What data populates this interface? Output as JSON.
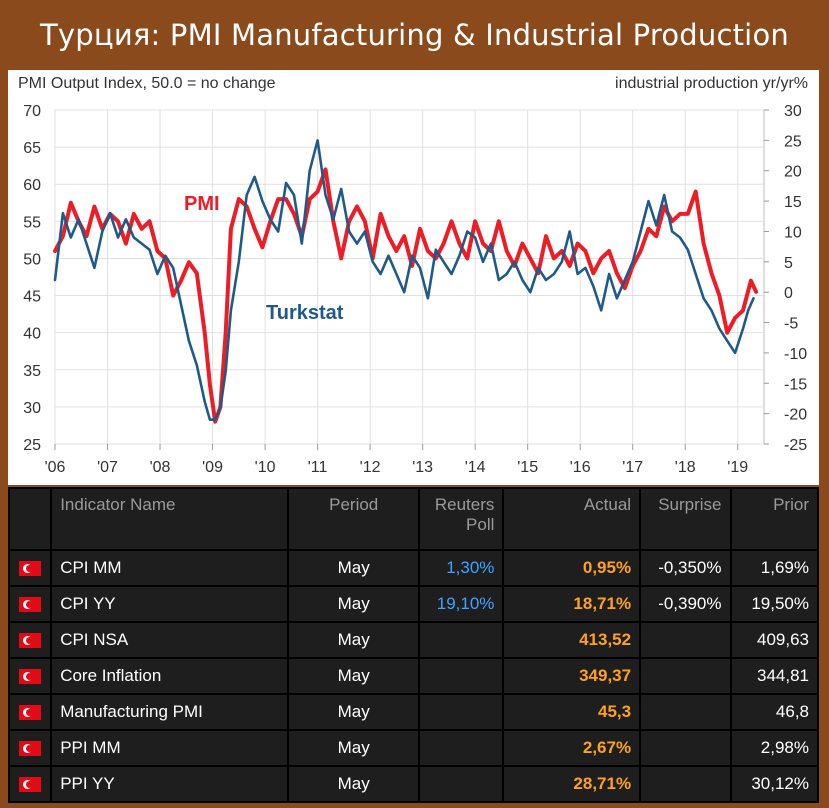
{
  "title": "Турция: PMI Manufacturing & Industrial Production",
  "chart_data": {
    "type": "line",
    "left_axis_label": "PMI Output Index, 50.0 = no change",
    "right_axis_label": "industrial production yr/yr%",
    "left_ylim": [
      25,
      70
    ],
    "left_ticks": [
      "70",
      "65",
      "60",
      "55",
      "50",
      "45",
      "40",
      "35",
      "30",
      "25"
    ],
    "right_ylim": [
      -25,
      30
    ],
    "right_ticks": [
      "30",
      "25",
      "20",
      "15",
      "10",
      "5",
      "0",
      "-5",
      "-10",
      "-15",
      "-20",
      "-25"
    ],
    "x_ticks": [
      "'06",
      "'07",
      "'08",
      "'09",
      "'10",
      "'11",
      "'12",
      "'13",
      "'14",
      "'15",
      "'16",
      "'17",
      "'18",
      "'19"
    ],
    "x_range": [
      2006.0,
      2019.5
    ],
    "grid": true,
    "series": [
      {
        "name": "PMI",
        "axis": "left",
        "color": "#ee1c25",
        "x": [
          2006.0,
          2006.15,
          2006.3,
          2006.45,
          2006.6,
          2006.75,
          2006.9,
          2007.05,
          2007.2,
          2007.35,
          2007.5,
          2007.65,
          2007.8,
          2007.95,
          2008.1,
          2008.25,
          2008.4,
          2008.55,
          2008.7,
          2008.85,
          2008.95,
          2009.05,
          2009.15,
          2009.25,
          2009.35,
          2009.5,
          2009.65,
          2009.8,
          2009.95,
          2010.1,
          2010.25,
          2010.4,
          2010.55,
          2010.7,
          2010.85,
          2011.0,
          2011.15,
          2011.3,
          2011.45,
          2011.6,
          2011.75,
          2011.9,
          2012.05,
          2012.2,
          2012.35,
          2012.5,
          2012.65,
          2012.8,
          2012.95,
          2013.1,
          2013.25,
          2013.4,
          2013.55,
          2013.7,
          2013.85,
          2014.0,
          2014.15,
          2014.3,
          2014.45,
          2014.6,
          2014.75,
          2014.9,
          2015.05,
          2015.2,
          2015.35,
          2015.5,
          2015.65,
          2015.8,
          2015.95,
          2016.1,
          2016.25,
          2016.4,
          2016.55,
          2016.7,
          2016.85,
          2017.0,
          2017.15,
          2017.3,
          2017.45,
          2017.6,
          2017.75,
          2017.9,
          2018.05,
          2018.2,
          2018.35,
          2018.5,
          2018.65,
          2018.8,
          2018.95,
          2019.1,
          2019.25,
          2019.35
        ],
        "values": [
          51,
          53,
          57.5,
          55,
          53,
          57,
          54,
          56,
          55,
          52,
          56,
          54,
          55,
          51,
          50,
          45,
          47,
          49.5,
          48,
          40,
          33,
          28,
          30,
          40,
          54,
          58,
          57,
          54,
          51.5,
          55,
          58,
          58,
          56,
          53,
          58,
          59,
          62,
          55,
          50,
          55,
          57,
          55,
          50,
          56,
          53,
          51,
          53,
          49,
          54,
          51,
          50,
          52,
          55,
          52,
          50,
          55,
          52,
          51,
          55,
          51,
          49,
          52,
          50,
          48,
          53,
          50,
          51,
          49,
          52,
          51,
          48,
          50,
          51,
          48,
          46,
          49,
          51,
          54,
          53,
          57,
          55,
          56,
          56,
          59,
          52,
          48,
          45,
          40,
          42,
          43,
          47,
          45.5
        ]
      },
      {
        "name": "Turkstat",
        "axis": "right",
        "color": "#1f5a8a",
        "x": [
          2006.0,
          2006.15,
          2006.3,
          2006.45,
          2006.6,
          2006.75,
          2006.9,
          2007.05,
          2007.2,
          2007.35,
          2007.5,
          2007.65,
          2007.8,
          2007.95,
          2008.1,
          2008.25,
          2008.4,
          2008.55,
          2008.7,
          2008.85,
          2008.95,
          2009.05,
          2009.15,
          2009.25,
          2009.35,
          2009.5,
          2009.65,
          2009.8,
          2009.95,
          2010.1,
          2010.25,
          2010.4,
          2010.55,
          2010.7,
          2010.85,
          2011.0,
          2011.15,
          2011.3,
          2011.45,
          2011.6,
          2011.75,
          2011.9,
          2012.05,
          2012.2,
          2012.35,
          2012.5,
          2012.65,
          2012.8,
          2012.95,
          2013.1,
          2013.25,
          2013.4,
          2013.55,
          2013.7,
          2013.85,
          2014.0,
          2014.15,
          2014.3,
          2014.45,
          2014.6,
          2014.75,
          2014.9,
          2015.05,
          2015.2,
          2015.35,
          2015.5,
          2015.65,
          2015.8,
          2015.95,
          2016.1,
          2016.25,
          2016.4,
          2016.55,
          2016.7,
          2016.85,
          2017.0,
          2017.15,
          2017.3,
          2017.45,
          2017.6,
          2017.75,
          2017.9,
          2018.05,
          2018.2,
          2018.35,
          2018.5,
          2018.65,
          2018.8,
          2018.95,
          2019.1,
          2019.2,
          2019.3
        ],
        "values": [
          2,
          13,
          9,
          12,
          8,
          4,
          10,
          13,
          9,
          12,
          9,
          8,
          7,
          3,
          6,
          4,
          -2,
          -8,
          -12,
          -18,
          -21,
          -21,
          -19,
          -13,
          -3,
          5,
          16,
          19,
          15,
          12,
          10,
          18,
          16,
          8,
          20,
          25,
          16,
          12,
          17,
          10,
          8,
          10,
          5,
          3,
          6,
          3,
          0,
          6,
          4,
          -1,
          7,
          5,
          3,
          6,
          10,
          9,
          5,
          8,
          2,
          3,
          5,
          2,
          0,
          4,
          2,
          3,
          5,
          10,
          3,
          4,
          1,
          -3,
          3,
          -1,
          2,
          5,
          10,
          15,
          11,
          16,
          10,
          9,
          7,
          3,
          -1,
          -3,
          -6,
          -8,
          -10,
          -6,
          -3,
          -1
        ],
        "note": "industrial production yr/yr%"
      }
    ],
    "series_labels": [
      {
        "name": "PMI",
        "text": "PMI"
      },
      {
        "name": "Turkstat",
        "text": "Turkstat"
      }
    ]
  },
  "table": {
    "headers": {
      "name": "Indicator Name",
      "period": "Period",
      "poll_line1": "Reuters",
      "poll_line2": "Poll",
      "actual": "Actual",
      "surprise": "Surprise",
      "prior": "Prior"
    },
    "rows": [
      {
        "name": "CPI MM",
        "period": "May",
        "poll": "1,30%",
        "actual": "0,95%",
        "surprise": "-0,350%",
        "prior": "1,69%"
      },
      {
        "name": "CPI YY",
        "period": "May",
        "poll": "19,10%",
        "actual": "18,71%",
        "surprise": "-0,390%",
        "prior": "19,50%"
      },
      {
        "name": "CPI NSA",
        "period": "May",
        "poll": "",
        "actual": "413,52",
        "surprise": "",
        "prior": "409,63"
      },
      {
        "name": "Core Inflation",
        "period": "May",
        "poll": "",
        "actual": "349,37",
        "surprise": "",
        "prior": "344,81"
      },
      {
        "name": "Manufacturing PMI",
        "period": "May",
        "poll": "",
        "actual": "45,3",
        "surprise": "",
        "prior": "46,8"
      },
      {
        "name": "PPI MM",
        "period": "May",
        "poll": "",
        "actual": "2,67%",
        "surprise": "",
        "prior": "2,98%"
      },
      {
        "name": "PPI YY",
        "period": "May",
        "poll": "",
        "actual": "28,71%",
        "surprise": "",
        "prior": "30,12%"
      }
    ]
  }
}
